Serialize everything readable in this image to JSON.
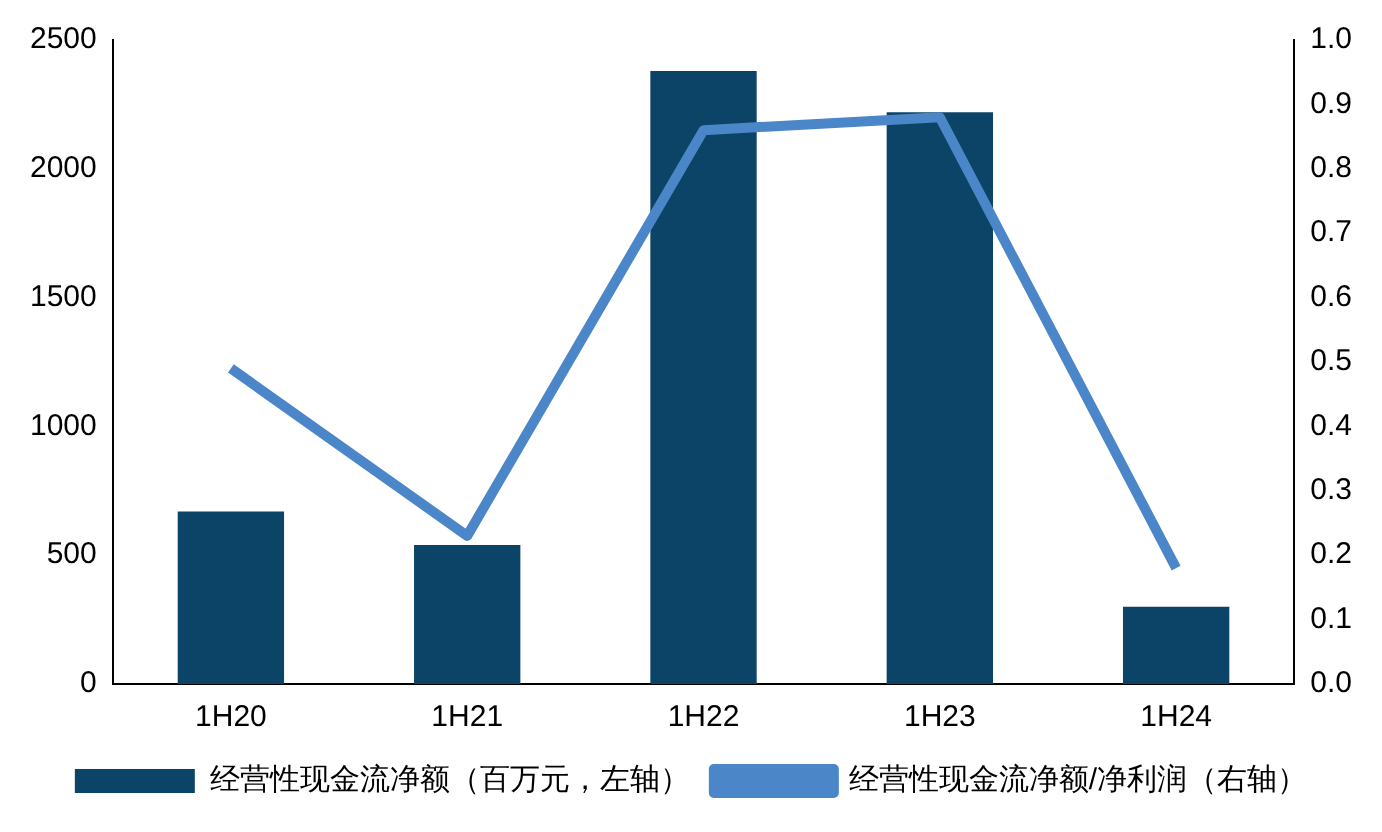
{
  "chart_data": {
    "type": "bar",
    "categories": [
      "1H20",
      "1H21",
      "1H22",
      "1H23",
      "1H24"
    ],
    "series": [
      {
        "name": "经营性现金流净额（百万元，左轴）",
        "color": "#0b4466",
        "values": [
          670,
          540,
          2380,
          2220,
          300
        ]
      },
      {
        "name": "经营性现金流净额/净利润（右轴）",
        "type": "line",
        "axis": "y2",
        "color": "#4a86c8",
        "values": [
          0.49,
          0.23,
          0.86,
          0.88,
          0.18
        ]
      }
    ],
    "ylim": [
      0,
      2500
    ],
    "yticks": [
      0,
      500,
      1000,
      1500,
      2000,
      2500
    ],
    "y2lim": [
      0,
      1.0
    ],
    "y2ticks": [
      {
        "value": 0,
        "label": "0.0"
      },
      {
        "value": 0.1,
        "label": "0.1"
      },
      {
        "value": 0.2,
        "label": "0.2"
      },
      {
        "value": 0.3,
        "label": "0.3"
      },
      {
        "value": 0.4,
        "label": "0.4"
      },
      {
        "value": 0.5,
        "label": "0.5"
      },
      {
        "value": 0.6,
        "label": "0.6"
      },
      {
        "value": 0.7,
        "label": "0.7"
      },
      {
        "value": 0.8,
        "label": "0.8"
      },
      {
        "value": 0.9,
        "label": "0.9"
      },
      {
        "value": 1.0,
        "label": "1.0"
      }
    ],
    "grid": false,
    "legend": "bottom",
    "marker": "none",
    "line_style": "solid"
  }
}
